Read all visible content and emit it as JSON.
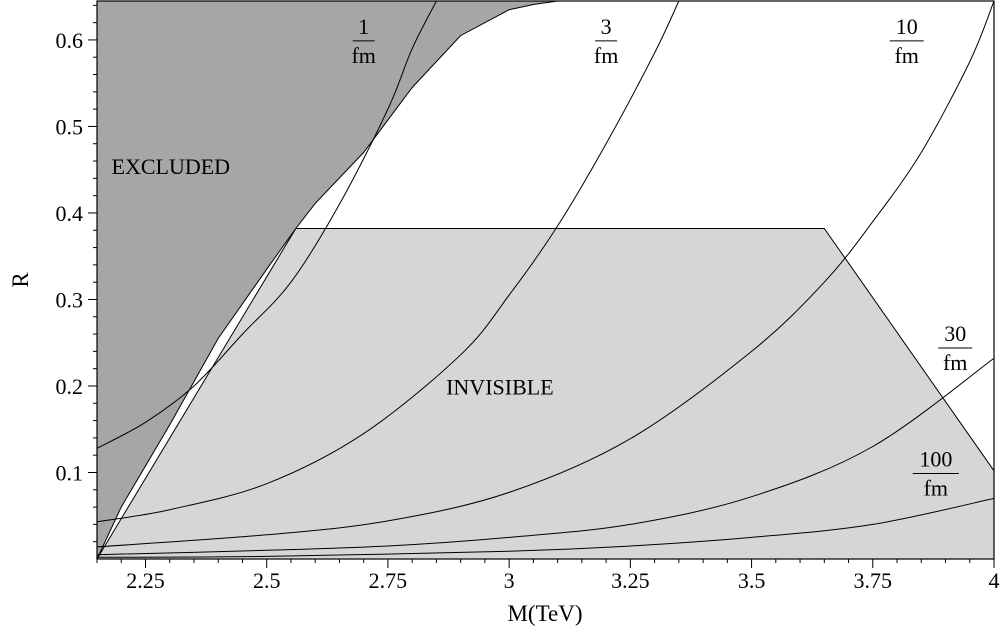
{
  "chart_data": {
    "type": "line",
    "xlabel": "M(TeV)",
    "ylabel": "R",
    "xlim": [
      2.15,
      4.0
    ],
    "ylim": [
      0.0,
      0.645
    ],
    "x_ticks": [
      2.25,
      2.5,
      2.75,
      3,
      3.25,
      3.5,
      3.75,
      4
    ],
    "x_tick_labels": [
      "2.25",
      "2.5",
      "2.75",
      "3",
      "3.25",
      "3.5",
      "3.75",
      "4"
    ],
    "y_ticks": [
      0.1,
      0.2,
      0.3,
      0.4,
      0.5,
      0.6
    ],
    "y_tick_labels": [
      "0.1",
      "0.2",
      "0.3",
      "0.4",
      "0.5",
      "0.6"
    ],
    "regions": [
      {
        "label": "EXCLUDED",
        "color": "#a6a6a6",
        "x": [
          2.15,
          2.2,
          2.3,
          2.4,
          2.5,
          2.56,
          2.6,
          2.7,
          2.8,
          2.9,
          3.0,
          3.05,
          3.1
        ],
        "y": [
          0.0,
          0.06,
          0.155,
          0.255,
          0.335,
          0.382,
          0.411,
          0.47,
          0.545,
          0.605,
          0.635,
          0.641,
          0.645
        ]
      },
      {
        "label": "INVISIBLE",
        "color": "#d6d6d6",
        "x": [
          2.15,
          2.56,
          3.65,
          4.0,
          4.0,
          2.15
        ],
        "y": [
          0.0,
          0.382,
          0.382,
          0.102,
          0.0,
          0.0
        ]
      }
    ],
    "series": [
      {
        "name": "1/fm",
        "label_top": "1",
        "label_bottom": "fm",
        "x": [
          2.15,
          2.25,
          2.35,
          2.45,
          2.55,
          2.65,
          2.75,
          2.8,
          2.85
        ],
        "y": [
          0.128,
          0.158,
          0.2,
          0.26,
          0.32,
          0.41,
          0.52,
          0.59,
          0.645
        ]
      },
      {
        "name": "3/fm",
        "label_top": "3",
        "label_bottom": "fm",
        "x": [
          2.15,
          2.3,
          2.5,
          2.7,
          2.9,
          3.0,
          3.1,
          3.2,
          3.3,
          3.35
        ],
        "y": [
          0.043,
          0.057,
          0.087,
          0.145,
          0.236,
          0.305,
          0.385,
          0.48,
          0.585,
          0.645
        ]
      },
      {
        "name": "10/fm",
        "label_top": "10",
        "label_bottom": "fm",
        "x": [
          2.15,
          2.5,
          2.75,
          3.0,
          3.25,
          3.5,
          3.65,
          3.75,
          3.85,
          3.95,
          4.0
        ],
        "y": [
          0.014,
          0.028,
          0.044,
          0.077,
          0.139,
          0.24,
          0.32,
          0.39,
          0.47,
          0.575,
          0.645
        ]
      },
      {
        "name": "30/fm",
        "label_top": "30",
        "label_bottom": "fm",
        "x": [
          2.15,
          2.5,
          2.75,
          3.0,
          3.25,
          3.5,
          3.75,
          4.0
        ],
        "y": [
          0.005,
          0.01,
          0.015,
          0.025,
          0.04,
          0.072,
          0.13,
          0.232
        ]
      },
      {
        "name": "100/fm",
        "label_top": "100",
        "label_bottom": "fm",
        "x": [
          2.15,
          2.5,
          3.0,
          3.25,
          3.5,
          3.75,
          4.0
        ],
        "y": [
          0.002,
          0.003,
          0.009,
          0.015,
          0.025,
          0.04,
          0.07
        ]
      }
    ],
    "grid": false,
    "legend": "none"
  }
}
